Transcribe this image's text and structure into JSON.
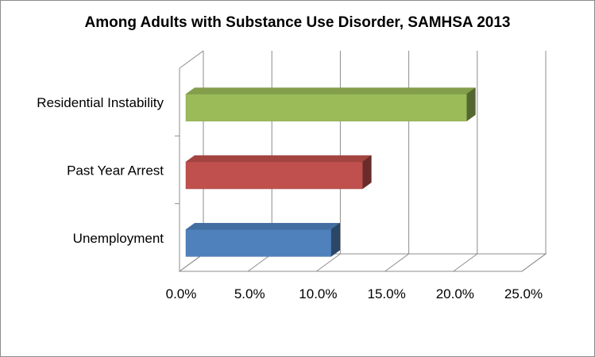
{
  "chart_data": {
    "type": "bar",
    "orientation": "horizontal",
    "style": "3d",
    "title": "Among Adults with Substance Use Disorder, SAMHSA 2013",
    "categories": [
      "Residential Instability",
      "Past Year Arrest",
      "Unemployment"
    ],
    "values": [
      20.5,
      12.9,
      10.6
    ],
    "colors": [
      "#9bbb59",
      "#c0504d",
      "#4f81bd"
    ],
    "xlim": [
      0,
      25
    ],
    "xticks": [
      "0.0%",
      "5.0%",
      "10.0%",
      "15.0%",
      "20.0%",
      "25.0%"
    ],
    "grid": true,
    "legend": "none"
  }
}
